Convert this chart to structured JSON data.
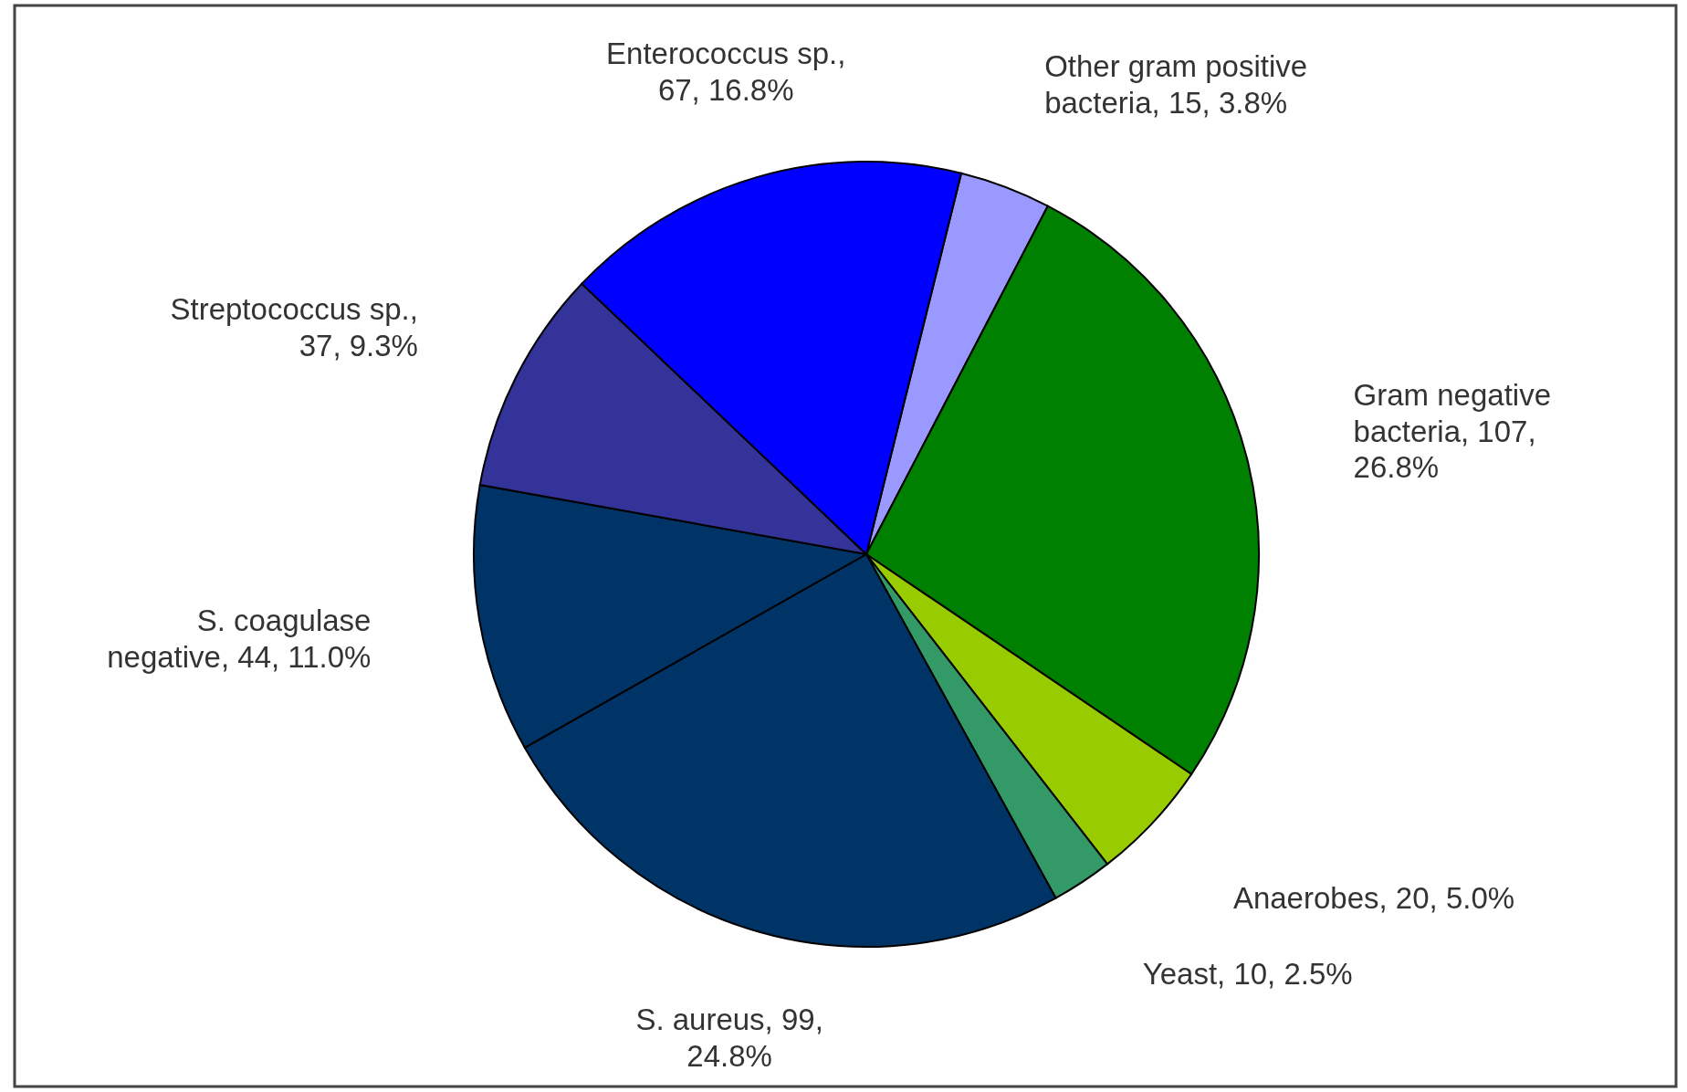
{
  "chart_data": {
    "type": "pie",
    "categories": [
      "Other gram positive bacteria",
      "Gram negative bacteria",
      "Anaerobes",
      "Yeast",
      "S. aureus",
      "S. coagulase negative",
      "Streptococcus sp.",
      "Enterococcus sp."
    ],
    "values": [
      15,
      107,
      20,
      10,
      99,
      44,
      37,
      67
    ],
    "value_labels": [
      ", 15, 3.8%",
      ", 107, 26.8%",
      ", 20, 5.0%",
      ", 10, 2.5%",
      ", 99, 24.8%",
      ", 44, 11.0%",
      ", 37, 9.3%",
      ", 67, 16.8%"
    ],
    "colors": [
      "#9999ff",
      "#008000",
      "#99cc00",
      "#339966",
      "#003366",
      "#003366",
      "#333399",
      "#0000ff"
    ]
  }
}
